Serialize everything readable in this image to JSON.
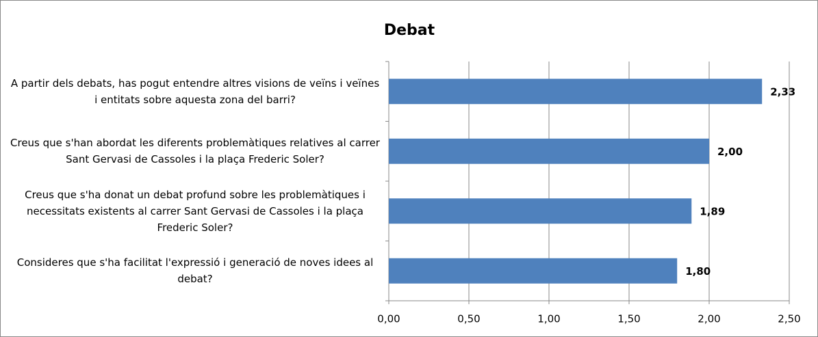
{
  "chart_data": {
    "type": "bar",
    "orientation": "horizontal",
    "title": "Debat",
    "categories": [
      "A partir dels debats, has pogut entendre altres visions de veïns i veïnes i entitats sobre aquesta zona del barri?",
      "Creus que s'han abordat les diferents problemàtiques relatives al carrer Sant Gervasi de Cassoles i la plaça Frederic Soler?",
      "Creus que s'ha donat un debat profund sobre les problemàtiques i necessitats existents al carrer Sant Gervasi de Cassoles i la plaça Frederic Soler?",
      "Consideres que s'ha facilitat l'expressió i generació de noves idees al debat?"
    ],
    "values": [
      2.33,
      2.0,
      1.89,
      1.8
    ],
    "value_labels": [
      "2,33",
      "2,00",
      "1,89",
      "1,80"
    ],
    "color": "#4f81bd",
    "xlim": [
      0,
      2.5
    ],
    "xticks": [
      {
        "value": 0,
        "label": "0,00"
      },
      {
        "value": 0.5,
        "label": "0,50"
      },
      {
        "value": 1,
        "label": "1,00"
      },
      {
        "value": 1.5,
        "label": "1,50"
      },
      {
        "value": 2,
        "label": "2,00"
      },
      {
        "value": 2.5,
        "label": "2,50"
      }
    ],
    "grid": true
  }
}
